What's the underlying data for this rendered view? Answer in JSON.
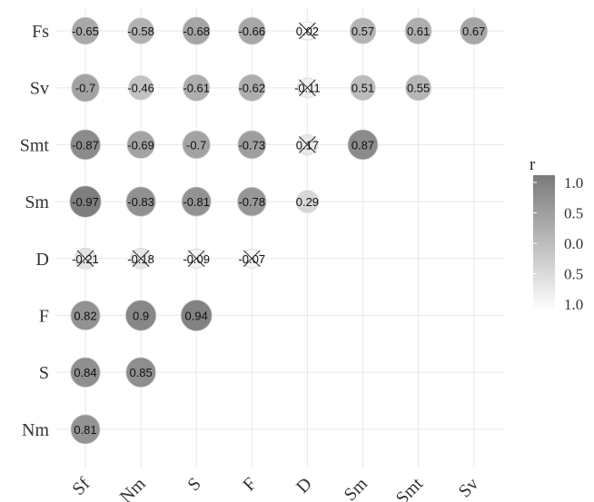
{
  "chart_data": {
    "type": "heatmap",
    "style": "correlogram-circles",
    "title": "",
    "x_labels": [
      "Sf",
      "Nm",
      "S",
      "F",
      "D",
      "Sm",
      "Smt",
      "Sv"
    ],
    "y_labels": [
      "Fs",
      "Sv",
      "Smt",
      "Sm",
      "D",
      "F",
      "S",
      "Nm"
    ],
    "cells": [
      {
        "x": "Sf",
        "y": "Fs",
        "value": -0.65,
        "label": "-0.65",
        "crossed": false
      },
      {
        "x": "Nm",
        "y": "Fs",
        "value": -0.58,
        "label": "-0.58",
        "crossed": false
      },
      {
        "x": "S",
        "y": "Fs",
        "value": -0.68,
        "label": "-0.68",
        "crossed": false
      },
      {
        "x": "F",
        "y": "Fs",
        "value": -0.66,
        "label": "-0.66",
        "crossed": false
      },
      {
        "x": "D",
        "y": "Fs",
        "value": 0.02,
        "label": "0.02",
        "crossed": true
      },
      {
        "x": "Sm",
        "y": "Fs",
        "value": 0.57,
        "label": "0.57",
        "crossed": false
      },
      {
        "x": "Smt",
        "y": "Fs",
        "value": 0.61,
        "label": "0.61",
        "crossed": false
      },
      {
        "x": "Sv",
        "y": "Fs",
        "value": 0.67,
        "label": "0.67",
        "crossed": false
      },
      {
        "x": "Sf",
        "y": "Sv",
        "value": -0.7,
        "label": "-0.7",
        "crossed": false
      },
      {
        "x": "Nm",
        "y": "Sv",
        "value": -0.46,
        "label": "-0.46",
        "crossed": false
      },
      {
        "x": "S",
        "y": "Sv",
        "value": -0.61,
        "label": "-0.61",
        "crossed": false
      },
      {
        "x": "F",
        "y": "Sv",
        "value": -0.62,
        "label": "-0.62",
        "crossed": false
      },
      {
        "x": "D",
        "y": "Sv",
        "value": -0.11,
        "label": "-0.11",
        "crossed": true
      },
      {
        "x": "Sm",
        "y": "Sv",
        "value": 0.51,
        "label": "0.51",
        "crossed": false
      },
      {
        "x": "Smt",
        "y": "Sv",
        "value": 0.55,
        "label": "0.55",
        "crossed": false
      },
      {
        "x": "Sf",
        "y": "Smt",
        "value": -0.87,
        "label": "-0.87",
        "crossed": false
      },
      {
        "x": "Nm",
        "y": "Smt",
        "value": -0.69,
        "label": "-0.69",
        "crossed": false
      },
      {
        "x": "S",
        "y": "Smt",
        "value": -0.7,
        "label": "-0.7",
        "crossed": false
      },
      {
        "x": "F",
        "y": "Smt",
        "value": -0.73,
        "label": "-0.73",
        "crossed": false
      },
      {
        "x": "D",
        "y": "Smt",
        "value": 0.17,
        "label": "0.17",
        "crossed": true
      },
      {
        "x": "Sm",
        "y": "Smt",
        "value": 0.87,
        "label": "0.87",
        "crossed": false
      },
      {
        "x": "Sf",
        "y": "Sm",
        "value": -0.97,
        "label": "-0.97",
        "crossed": false
      },
      {
        "x": "Nm",
        "y": "Sm",
        "value": -0.83,
        "label": "-0.83",
        "crossed": false
      },
      {
        "x": "S",
        "y": "Sm",
        "value": -0.81,
        "label": "-0.81",
        "crossed": false
      },
      {
        "x": "F",
        "y": "Sm",
        "value": -0.78,
        "label": "-0.78",
        "crossed": false
      },
      {
        "x": "D",
        "y": "Sm",
        "value": 0.29,
        "label": "0.29",
        "crossed": false
      },
      {
        "x": "Sf",
        "y": "D",
        "value": -0.21,
        "label": "-0.21",
        "crossed": true
      },
      {
        "x": "Nm",
        "y": "D",
        "value": -0.18,
        "label": "-0.18",
        "crossed": true
      },
      {
        "x": "S",
        "y": "D",
        "value": -0.09,
        "label": "-0.09",
        "crossed": true
      },
      {
        "x": "F",
        "y": "D",
        "value": -0.07,
        "label": "-0.07",
        "crossed": true
      },
      {
        "x": "Sf",
        "y": "F",
        "value": 0.82,
        "label": "0.82",
        "crossed": false
      },
      {
        "x": "Nm",
        "y": "F",
        "value": 0.9,
        "label": "0.9",
        "crossed": false
      },
      {
        "x": "S",
        "y": "F",
        "value": 0.94,
        "label": "0.94",
        "crossed": false
      },
      {
        "x": "Sf",
        "y": "S",
        "value": 0.84,
        "label": "0.84",
        "crossed": false
      },
      {
        "x": "Nm",
        "y": "S",
        "value": 0.85,
        "label": "0.85",
        "crossed": false
      },
      {
        "x": "Sf",
        "y": "Nm",
        "value": 0.81,
        "label": "0.81",
        "crossed": false
      }
    ],
    "legend": {
      "title": "r",
      "tick_labels": [
        "1.0",
        "0.5",
        "0.0",
        "0.5",
        "1.0"
      ],
      "colors": [
        "#7a7a7a",
        "#ffffff"
      ],
      "placement": "right"
    },
    "grid": true
  }
}
